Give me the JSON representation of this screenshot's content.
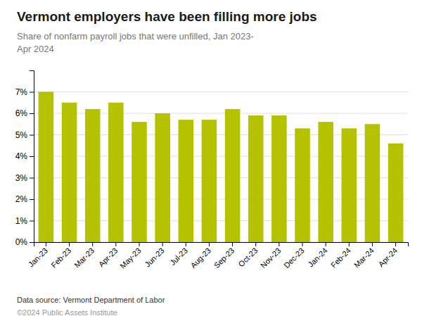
{
  "chart_data": {
    "type": "bar",
    "title": "Vermont employers have been filling more jobs",
    "subtitle": "Share of nonfarm payroll jobs that were unfilled, Jan 2023-\nApr 2024",
    "categories": [
      "Jan-23",
      "Feb-23",
      "Mar-23",
      "Apr-23",
      "May-23",
      "Jun-23",
      "Jul-23",
      "Aug-23",
      "Sep-23",
      "Oct-23",
      "Nov-23",
      "Dec-23",
      "Jan-24",
      "Feb-24",
      "Mar-24",
      "Apr-24"
    ],
    "values": [
      0.07,
      0.065,
      0.062,
      0.065,
      0.056,
      0.06,
      0.057,
      0.057,
      0.062,
      0.059,
      0.059,
      0.053,
      0.056,
      0.053,
      0.055,
      0.046
    ],
    "color": "#b5c200",
    "ylim": [
      0,
      0.08
    ],
    "yticks": [
      {
        "value": 0.0,
        "label": "0%"
      },
      {
        "value": 0.01,
        "label": "1%"
      },
      {
        "value": 0.02,
        "label": "2%"
      },
      {
        "value": 0.03,
        "label": "3%"
      },
      {
        "value": 0.04,
        "label": "4%"
      },
      {
        "value": 0.05,
        "label": "5%"
      },
      {
        "value": 0.06,
        "label": "6%"
      },
      {
        "value": 0.07,
        "label": "7%"
      }
    ],
    "grid": true,
    "annotations": [
      "Data source: Vermont Department of Labor",
      "©2024 Public Assets Institute"
    ]
  }
}
